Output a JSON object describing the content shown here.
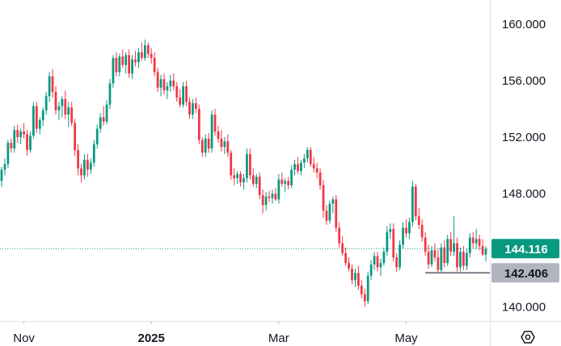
{
  "chart_data": {
    "type": "candlestick",
    "title": "",
    "xlabel": "",
    "ylabel": "",
    "ylim": [
      139.0,
      161.7
    ],
    "y_ticks": [
      "160.000",
      "156.000",
      "152.000",
      "148.000",
      "140.000"
    ],
    "x_ticks": [
      {
        "label": "Nov",
        "bold": false,
        "index": 7
      },
      {
        "label": "2025",
        "bold": true,
        "index": 47
      },
      {
        "label": "Mar",
        "bold": false,
        "index": 87
      },
      {
        "label": "May",
        "bold": false,
        "index": 127
      }
    ],
    "colors": {
      "up": "#089981",
      "down": "#f23645",
      "support_line": "#787b86",
      "price_badge": "#089981",
      "support_badge": "#b2b5be"
    },
    "last_price": {
      "label": "144.116",
      "value": 144.116
    },
    "support_level": {
      "label": "142.406",
      "value": 142.406,
      "start_index": 133
    },
    "candles": [
      [
        148.9,
        149.9,
        148.5,
        149.7
      ],
      [
        149.7,
        150.5,
        149.3,
        150.1
      ],
      [
        150.1,
        151.8,
        149.8,
        151.6
      ],
      [
        151.6,
        151.9,
        150.9,
        151.2
      ],
      [
        151.2,
        152.8,
        150.9,
        152.5
      ],
      [
        152.5,
        152.9,
        151.6,
        152.0
      ],
      [
        152.0,
        152.6,
        151.5,
        152.4
      ],
      [
        152.4,
        153.0,
        151.9,
        152.2
      ],
      [
        152.2,
        152.5,
        150.7,
        151.1
      ],
      [
        151.1,
        152.4,
        150.9,
        152.1
      ],
      [
        152.1,
        154.5,
        151.9,
        154.2
      ],
      [
        154.2,
        154.5,
        152.3,
        152.6
      ],
      [
        152.6,
        153.4,
        152.2,
        153.2
      ],
      [
        153.2,
        154.1,
        152.8,
        153.9
      ],
      [
        153.9,
        155.2,
        153.6,
        154.9
      ],
      [
        154.9,
        156.6,
        154.5,
        156.3
      ],
      [
        156.3,
        156.8,
        154.8,
        155.2
      ],
      [
        155.2,
        155.6,
        153.6,
        153.9
      ],
      [
        153.9,
        154.5,
        153.2,
        154.2
      ],
      [
        154.2,
        154.9,
        153.4,
        154.7
      ],
      [
        154.7,
        155.3,
        153.3,
        153.6
      ],
      [
        153.6,
        154.5,
        152.7,
        154.1
      ],
      [
        154.1,
        154.5,
        152.8,
        153.0
      ],
      [
        153.0,
        153.3,
        150.7,
        151.1
      ],
      [
        151.1,
        151.5,
        149.3,
        149.8
      ],
      [
        149.8,
        150.1,
        148.8,
        149.3
      ],
      [
        149.3,
        150.8,
        149.0,
        150.4
      ],
      [
        150.4,
        150.8,
        149.2,
        149.7
      ],
      [
        149.7,
        150.5,
        149.4,
        150.2
      ],
      [
        150.2,
        151.8,
        149.9,
        151.5
      ],
      [
        151.5,
        152.9,
        151.2,
        152.6
      ],
      [
        152.6,
        153.7,
        152.3,
        153.4
      ],
      [
        153.4,
        154.2,
        152.8,
        153.1
      ],
      [
        153.1,
        154.6,
        152.9,
        154.3
      ],
      [
        154.3,
        156.1,
        154.0,
        155.8
      ],
      [
        155.8,
        157.8,
        155.5,
        157.6
      ],
      [
        157.6,
        158.0,
        156.3,
        156.6
      ],
      [
        156.6,
        157.9,
        156.3,
        157.7
      ],
      [
        157.7,
        158.2,
        156.9,
        157.1
      ],
      [
        157.1,
        158.0,
        156.5,
        157.8
      ],
      [
        157.8,
        158.2,
        156.2,
        156.5
      ],
      [
        156.5,
        157.8,
        156.1,
        157.5
      ],
      [
        157.5,
        158.1,
        157.0,
        157.3
      ],
      [
        157.3,
        158.3,
        156.9,
        158.0
      ],
      [
        158.0,
        158.7,
        157.4,
        157.6
      ],
      [
        157.6,
        158.9,
        157.4,
        158.5
      ],
      [
        158.5,
        158.7,
        157.6,
        157.9
      ],
      [
        157.9,
        158.3,
        157.2,
        157.6
      ],
      [
        157.6,
        158.0,
        156.3,
        156.6
      ],
      [
        156.6,
        156.9,
        155.2,
        155.5
      ],
      [
        155.5,
        156.4,
        154.9,
        156.1
      ],
      [
        156.1,
        156.5,
        155.0,
        155.3
      ],
      [
        155.3,
        155.9,
        154.7,
        155.6
      ],
      [
        155.6,
        156.4,
        155.2,
        156.0
      ],
      [
        156.0,
        156.5,
        155.3,
        155.6
      ],
      [
        155.6,
        155.9,
        154.5,
        154.8
      ],
      [
        154.8,
        155.4,
        154.1,
        154.3
      ],
      [
        154.3,
        155.9,
        154.1,
        155.6
      ],
      [
        155.6,
        156.0,
        154.2,
        154.5
      ],
      [
        154.5,
        154.8,
        153.3,
        153.6
      ],
      [
        153.6,
        154.7,
        153.3,
        154.4
      ],
      [
        154.4,
        154.8,
        153.7,
        154.0
      ],
      [
        154.0,
        154.3,
        151.5,
        151.8
      ],
      [
        151.8,
        152.0,
        150.6,
        150.9
      ],
      [
        150.9,
        152.2,
        150.6,
        151.9
      ],
      [
        151.9,
        152.3,
        150.9,
        151.2
      ],
      [
        151.2,
        153.9,
        150.9,
        153.6
      ],
      [
        153.6,
        154.0,
        152.1,
        152.4
      ],
      [
        152.4,
        152.8,
        151.6,
        151.9
      ],
      [
        151.9,
        152.5,
        151.0,
        151.3
      ],
      [
        151.3,
        152.0,
        150.8,
        151.7
      ],
      [
        151.7,
        152.2,
        150.6,
        150.9
      ],
      [
        150.9,
        151.1,
        149.0,
        149.3
      ],
      [
        149.3,
        149.8,
        148.6,
        149.1
      ],
      [
        149.1,
        149.6,
        148.7,
        149.4
      ],
      [
        149.4,
        149.6,
        148.5,
        148.8
      ],
      [
        148.8,
        149.4,
        148.3,
        149.1
      ],
      [
        149.1,
        151.2,
        148.8,
        150.8
      ],
      [
        150.8,
        151.2,
        149.0,
        149.3
      ],
      [
        149.3,
        149.8,
        148.5,
        148.7
      ],
      [
        148.7,
        149.4,
        148.4,
        149.2
      ],
      [
        149.2,
        149.5,
        147.6,
        147.9
      ],
      [
        147.9,
        148.3,
        146.6,
        147.2
      ],
      [
        147.2,
        148.1,
        146.8,
        147.8
      ],
      [
        147.8,
        148.2,
        147.4,
        147.7
      ],
      [
        147.7,
        148.3,
        147.3,
        148.0
      ],
      [
        148.0,
        148.4,
        147.5,
        147.6
      ],
      [
        147.6,
        149.4,
        147.3,
        149.0
      ],
      [
        149.0,
        149.5,
        148.5,
        148.7
      ],
      [
        148.7,
        149.1,
        148.1,
        148.9
      ],
      [
        148.9,
        149.2,
        148.3,
        148.6
      ],
      [
        148.6,
        150.0,
        148.4,
        149.7
      ],
      [
        149.7,
        150.4,
        149.3,
        150.1
      ],
      [
        150.1,
        150.6,
        149.4,
        149.6
      ],
      [
        149.6,
        150.4,
        149.3,
        150.2
      ],
      [
        150.2,
        150.8,
        149.8,
        150.5
      ],
      [
        150.5,
        151.3,
        150.2,
        151.1
      ],
      [
        151.1,
        151.3,
        149.9,
        150.1
      ],
      [
        150.1,
        150.6,
        149.5,
        149.8
      ],
      [
        149.8,
        150.2,
        149.1,
        149.5
      ],
      [
        149.5,
        149.8,
        148.3,
        148.6
      ],
      [
        148.6,
        149.0,
        146.3,
        146.8
      ],
      [
        146.8,
        147.2,
        145.8,
        146.1
      ],
      [
        146.1,
        147.5,
        145.9,
        147.3
      ],
      [
        147.3,
        147.8,
        146.6,
        147.6
      ],
      [
        147.6,
        147.9,
        145.3,
        145.6
      ],
      [
        145.6,
        146.0,
        144.2,
        144.5
      ],
      [
        144.5,
        145.0,
        143.6,
        143.8
      ],
      [
        143.8,
        144.2,
        142.9,
        143.1
      ],
      [
        143.1,
        143.5,
        142.5,
        142.7
      ],
      [
        142.7,
        143.0,
        141.6,
        141.9
      ],
      [
        141.9,
        142.7,
        141.4,
        142.4
      ],
      [
        142.4,
        142.9,
        141.2,
        141.5
      ],
      [
        141.5,
        141.9,
        140.6,
        140.9
      ],
      [
        140.9,
        141.3,
        140.0,
        140.4
      ],
      [
        140.4,
        142.5,
        140.2,
        142.2
      ],
      [
        142.2,
        143.3,
        141.9,
        143.0
      ],
      [
        143.0,
        143.9,
        142.6,
        143.6
      ],
      [
        143.6,
        143.9,
        142.5,
        142.8
      ],
      [
        142.8,
        143.4,
        142.2,
        143.1
      ],
      [
        143.1,
        144.2,
        142.9,
        143.9
      ],
      [
        143.9,
        145.7,
        143.6,
        145.3
      ],
      [
        145.3,
        145.9,
        144.8,
        145.5
      ],
      [
        145.5,
        145.9,
        143.2,
        143.5
      ],
      [
        143.5,
        143.8,
        142.5,
        142.8
      ],
      [
        142.8,
        144.7,
        142.6,
        144.4
      ],
      [
        144.4,
        146.0,
        144.1,
        145.6
      ],
      [
        145.6,
        146.2,
        144.9,
        145.2
      ],
      [
        145.2,
        146.3,
        144.8,
        146.0
      ],
      [
        146.0,
        148.9,
        145.7,
        148.5
      ],
      [
        148.5,
        148.7,
        146.1,
        146.4
      ],
      [
        146.4,
        147.0,
        145.5,
        145.8
      ],
      [
        145.8,
        146.2,
        144.6,
        144.9
      ],
      [
        144.9,
        145.3,
        143.6,
        143.9
      ],
      [
        143.9,
        144.4,
        142.7,
        143.0
      ],
      [
        143.0,
        144.3,
        142.8,
        144.0
      ],
      [
        144.0,
        144.5,
        143.2,
        143.5
      ],
      [
        143.5,
        144.1,
        142.4,
        142.6
      ],
      [
        142.6,
        144.5,
        142.4,
        144.2
      ],
      [
        144.2,
        144.7,
        142.8,
        143.1
      ],
      [
        143.1,
        145.1,
        142.9,
        144.8
      ],
      [
        144.8,
        145.3,
        143.6,
        143.9
      ],
      [
        143.9,
        146.4,
        143.6,
        144.5
      ],
      [
        144.5,
        144.9,
        142.5,
        142.8
      ],
      [
        142.8,
        144.2,
        142.5,
        143.9
      ],
      [
        143.9,
        144.3,
        142.6,
        142.9
      ],
      [
        142.9,
        144.1,
        142.6,
        143.8
      ],
      [
        143.8,
        145.2,
        143.5,
        144.9
      ],
      [
        144.9,
        145.3,
        144.1,
        144.5
      ],
      [
        144.5,
        145.5,
        144.1,
        144.8
      ],
      [
        144.8,
        145.1,
        144.0,
        144.3
      ],
      [
        144.3,
        144.8,
        143.6,
        143.7
      ],
      [
        143.7,
        144.3,
        143.2,
        144.1
      ]
    ]
  }
}
